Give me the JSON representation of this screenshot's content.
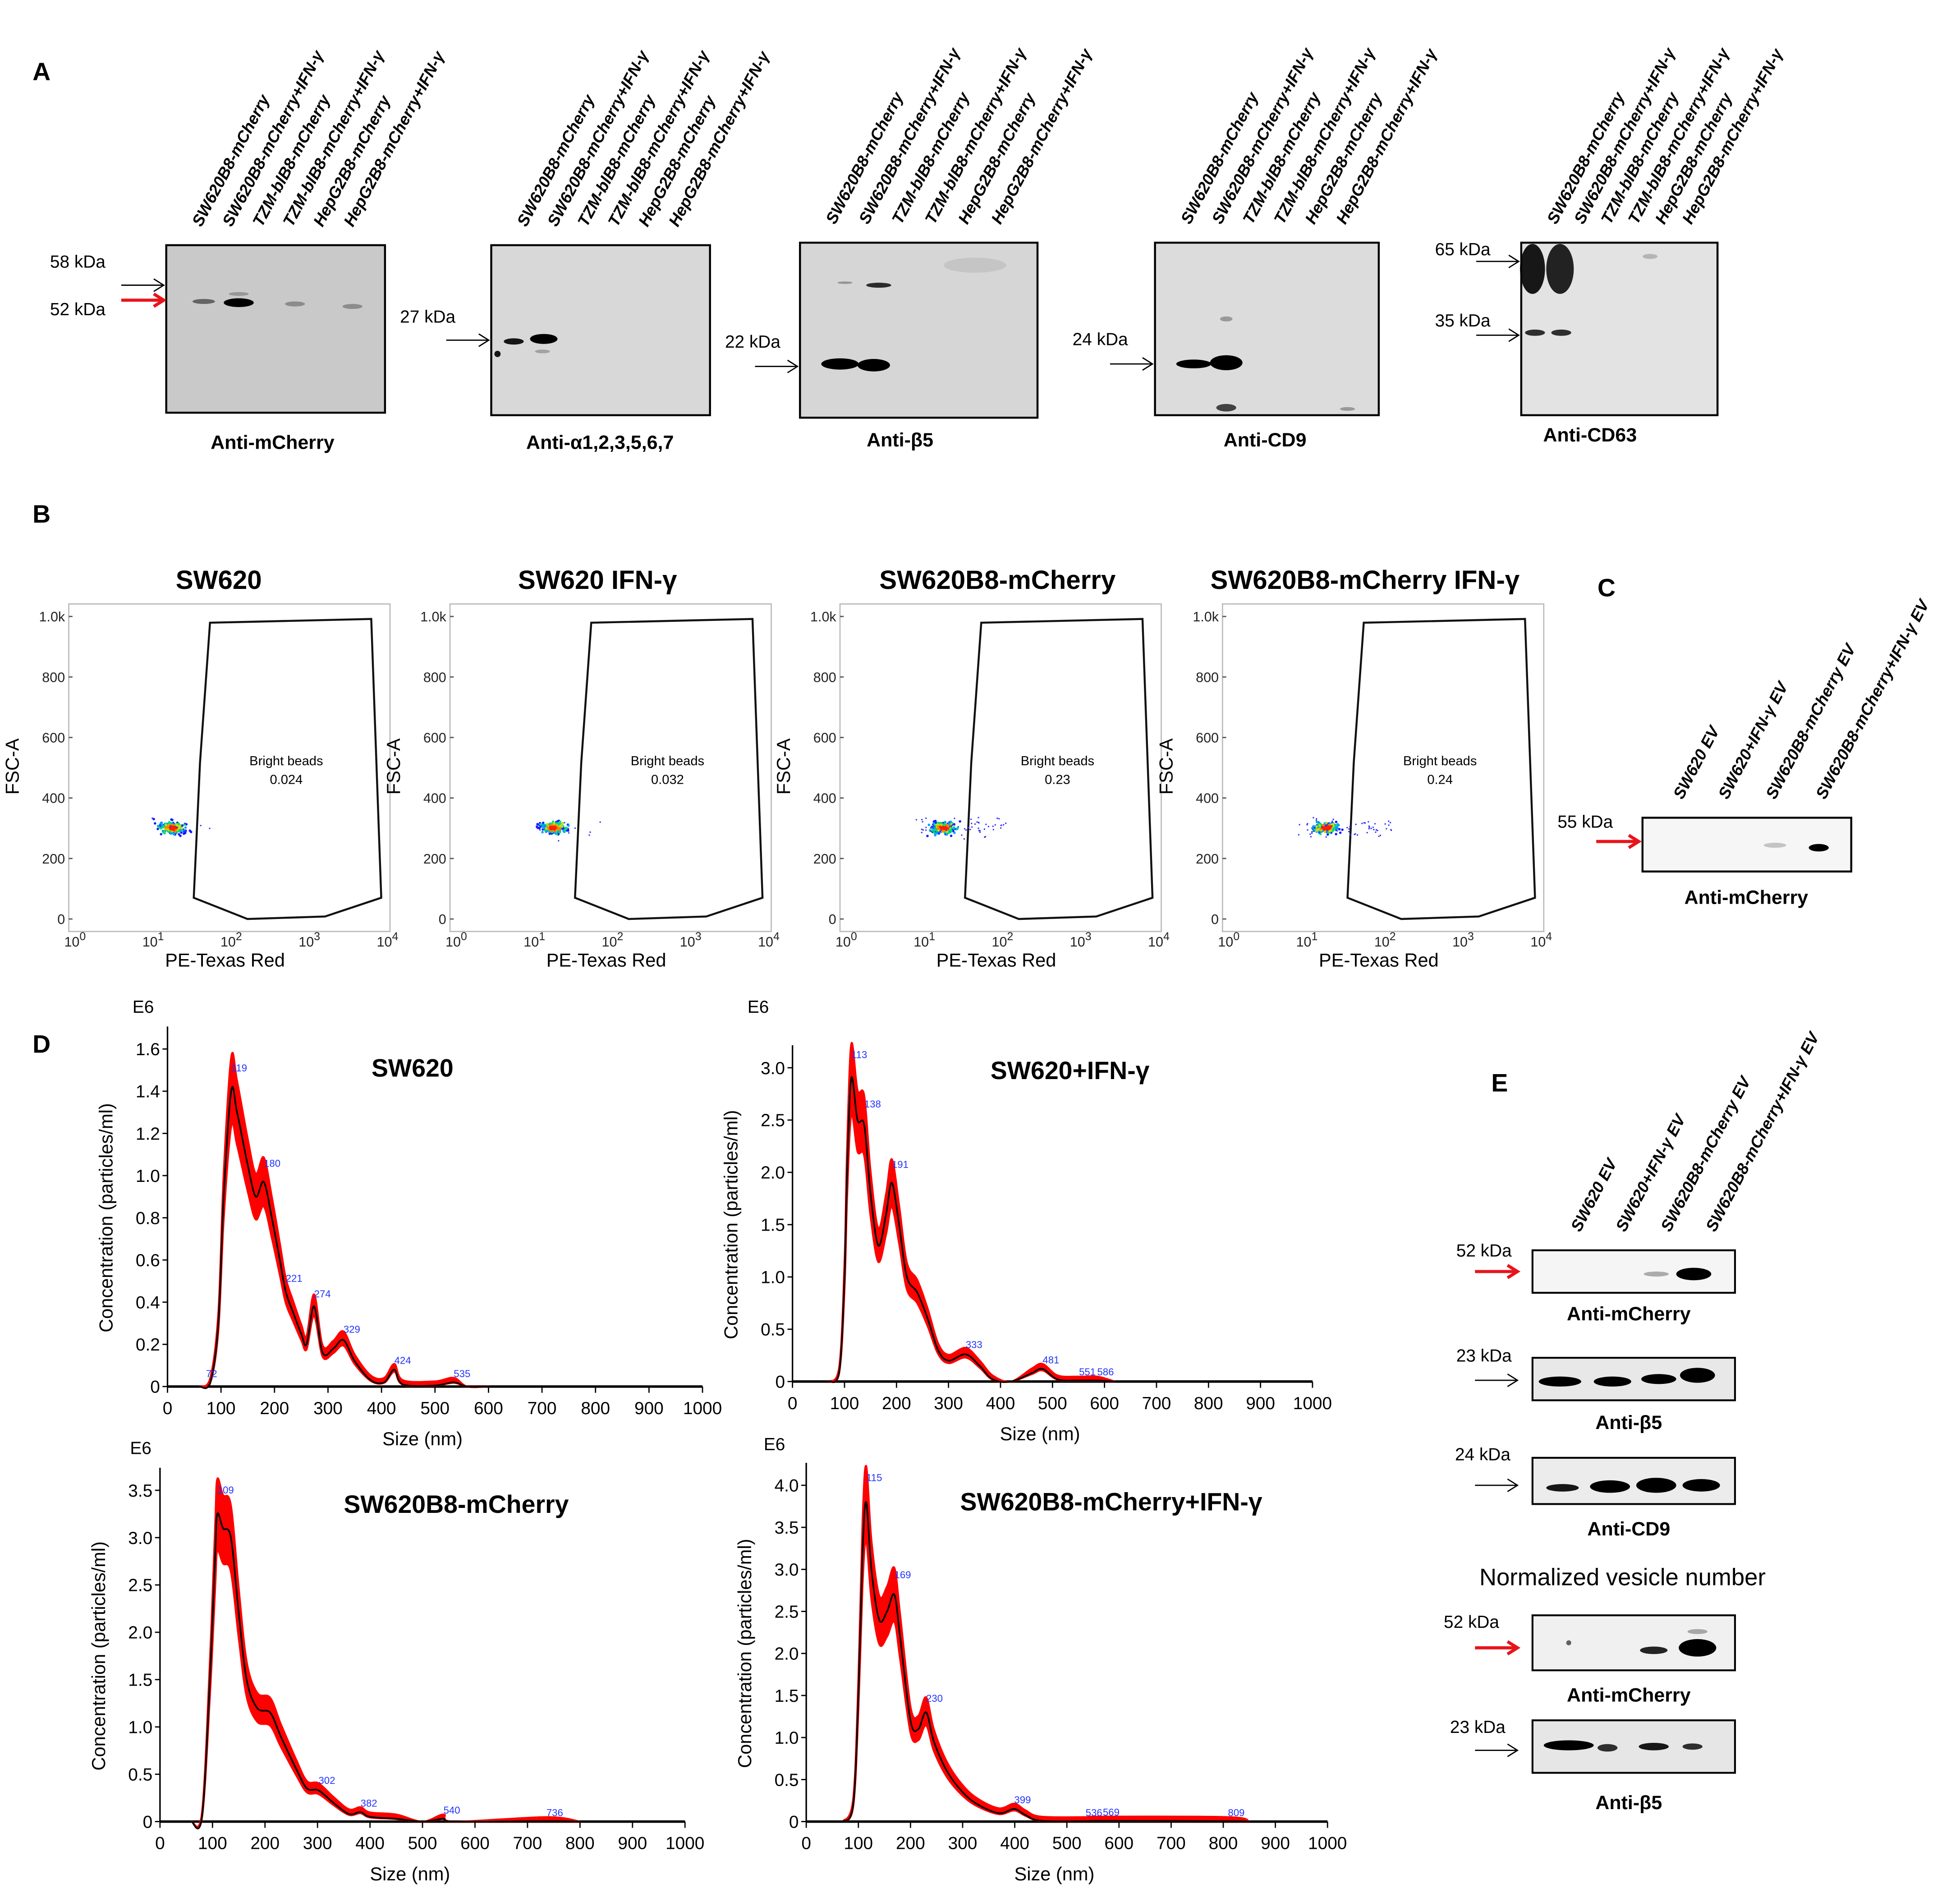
{
  "colors": {
    "red_arrow": "#e8141b",
    "nta_band": "#ff0000",
    "nta_line": "#000000",
    "peak_label": "#2233ff",
    "blot_bg": "#cfcfcf"
  },
  "panel_a": {
    "letter": "A",
    "lanes": [
      "SW620B8-mCherry",
      "SW620B8-mCherry+IFN-γ",
      "TZM-blB8-mCherry",
      "TZM-blB8-mCherry+IFN-γ",
      "HepG2B8-mCherry",
      "HepG2B8-mCherry+IFN-γ"
    ],
    "blots": [
      {
        "antibody": "Anti-mCherry",
        "markers": [
          {
            "label": "58 kDa",
            "arrow": "black"
          },
          {
            "label": "52 kDa",
            "arrow": "red"
          }
        ]
      },
      {
        "antibody": "Anti-α1,2,3,5,6,7",
        "markers": [
          {
            "label": "27 kDa",
            "arrow": "black"
          }
        ]
      },
      {
        "antibody": "Anti-β5",
        "markers": [
          {
            "label": "22 kDa",
            "arrow": "black"
          }
        ]
      },
      {
        "antibody": "Anti-CD9",
        "markers": [
          {
            "label": "24 kDa",
            "arrow": "black"
          }
        ]
      },
      {
        "antibody": "Anti-CD63",
        "markers": [
          {
            "label": "65 kDa",
            "arrow": "black"
          },
          {
            "label": "35 kDa",
            "arrow": "black"
          }
        ]
      }
    ]
  },
  "panel_b": {
    "letter": "B",
    "x_label": "PE-Texas Red",
    "y_label": "FSC-A",
    "y_ticks": [
      "0",
      "200",
      "400",
      "600",
      "800",
      "1.0k"
    ],
    "x_ticks": [
      "0",
      "1",
      "2",
      "3",
      "4"
    ],
    "x_tick_base": "10",
    "gate_name": "Bright beads",
    "plots": [
      {
        "title": "SW620",
        "gate_value": "0.024"
      },
      {
        "title": "SW620 IFN-γ",
        "gate_value": "0.032"
      },
      {
        "title": "SW620B8-mCherry",
        "gate_value": "0.23"
      },
      {
        "title": "SW620B8-mCherry IFN-γ",
        "gate_value": "0.24"
      }
    ]
  },
  "panel_c": {
    "letter": "C",
    "lanes": [
      "SW620 EV",
      "SW620+IFN-γ EV",
      "SW620B8-mCherry EV",
      "SW620B8-mCherry+IFN-γ EV"
    ],
    "blot": {
      "antibody": "Anti-mCherry",
      "marker": "55 kDa",
      "arrow": "red"
    }
  },
  "panel_d": {
    "letter": "D"
  },
  "chart_data": [
    {
      "type": "area",
      "title": "SW620",
      "xlabel": "Size (nm)",
      "ylabel": "Concentration (particles/ml)",
      "y_multiplier": "E6",
      "xlim": [
        0,
        1000
      ],
      "ylim": [
        0,
        1.6
      ],
      "x_ticks": [
        0,
        100,
        200,
        300,
        400,
        500,
        600,
        700,
        800,
        900,
        1000
      ],
      "y_ticks": [
        0,
        0.2,
        0.4,
        0.6,
        0.8,
        1.0,
        1.2,
        1.4,
        1.6
      ],
      "y_decimals": 1,
      "series": {
        "x": [
          60,
          80,
          95,
          105,
          119,
          130,
          150,
          165,
          180,
          195,
          210,
          221,
          235,
          250,
          260,
          274,
          290,
          310,
          329,
          350,
          380,
          405,
          424,
          440,
          500,
          535,
          560,
          600
        ],
        "y": [
          0,
          0.02,
          0.3,
          0.9,
          1.4,
          1.3,
          1.05,
          0.9,
          0.97,
          0.8,
          0.6,
          0.45,
          0.35,
          0.25,
          0.2,
          0.38,
          0.16,
          0.18,
          0.22,
          0.12,
          0.03,
          0.02,
          0.08,
          0.01,
          0.005,
          0.02,
          0,
          0
        ]
      },
      "peak_labels": [
        "72",
        "119",
        "180",
        "221",
        "274",
        "329",
        "424",
        "535"
      ]
    },
    {
      "type": "area",
      "title": "SW620+IFN-γ",
      "xlabel": "Size (nm)",
      "ylabel": "Concentration (particles/ml)",
      "y_multiplier": "E6",
      "xlim": [
        0,
        1000
      ],
      "ylim": [
        0,
        3.0
      ],
      "x_ticks": [
        0,
        100,
        200,
        300,
        400,
        500,
        600,
        700,
        800,
        900,
        1000
      ],
      "y_ticks": [
        0,
        0.5,
        1.0,
        1.5,
        2.0,
        2.5,
        3.0
      ],
      "y_decimals": 1,
      "series": {
        "x": [
          70,
          90,
          100,
          105,
          113,
          125,
          138,
          150,
          165,
          180,
          191,
          205,
          220,
          240,
          260,
          280,
          300,
          333,
          360,
          385,
          420,
          460,
          481,
          510,
          551,
          586,
          620
        ],
        "y": [
          0,
          0.1,
          1.0,
          2.0,
          2.9,
          2.5,
          2.45,
          1.8,
          1.3,
          1.6,
          1.9,
          1.5,
          1.0,
          0.85,
          0.6,
          0.3,
          0.2,
          0.26,
          0.15,
          0.02,
          0,
          0.08,
          0.12,
          0.02,
          0.01,
          0.01,
          0
        ]
      },
      "peak_labels": [
        "113",
        "138",
        "191",
        "333",
        "481",
        "551",
        "586"
      ]
    },
    {
      "type": "area",
      "title": "SW620B8-mCherry",
      "xlabel": "Size (nm)",
      "ylabel": "Concentration (particles/ml)",
      "y_multiplier": "E6",
      "xlim": [
        0,
        1000
      ],
      "ylim": [
        0,
        3.5
      ],
      "x_ticks": [
        0,
        100,
        200,
        300,
        400,
        500,
        600,
        700,
        800,
        900,
        1000
      ],
      "y_ticks": [
        0,
        0.5,
        1.0,
        1.5,
        2.0,
        2.5,
        3.0,
        3.5
      ],
      "y_decimals": 1,
      "series": {
        "x": [
          60,
          80,
          95,
          105,
          109,
          120,
          135,
          150,
          165,
          185,
          210,
          230,
          260,
          280,
          302,
          330,
          360,
          382,
          400,
          450,
          500,
          540,
          560,
          736,
          800
        ],
        "y": [
          0,
          0.05,
          1.5,
          2.8,
          3.25,
          3.1,
          3.0,
          2.2,
          1.5,
          1.2,
          1.15,
          0.9,
          0.55,
          0.35,
          0.33,
          0.2,
          0.08,
          0.1,
          0.05,
          0.03,
          0,
          0.03,
          0,
          0.005,
          0
        ]
      },
      "peak_labels": [
        "109",
        "302",
        "382",
        "540",
        "736"
      ]
    },
    {
      "type": "area",
      "title": "SW620B8-mCherry+IFN-γ",
      "xlabel": "Size (nm)",
      "ylabel": "Concentration (particles/ml)",
      "y_multiplier": "E6",
      "xlim": [
        0,
        1000
      ],
      "ylim": [
        0,
        4.0
      ],
      "x_ticks": [
        0,
        100,
        200,
        300,
        400,
        500,
        600,
        700,
        800,
        900,
        1000
      ],
      "y_ticks": [
        0,
        0.5,
        1.0,
        1.5,
        2.0,
        2.5,
        3.0,
        3.5,
        4.0
      ],
      "y_decimals": 1,
      "series": {
        "x": [
          70,
          90,
          100,
          108,
          115,
          125,
          140,
          155,
          169,
          180,
          200,
          215,
          230,
          245,
          270,
          300,
          330,
          370,
          399,
          420,
          450,
          536,
          569,
          809,
          850
        ],
        "y": [
          0,
          0.2,
          1.5,
          3.2,
          3.8,
          3.0,
          2.4,
          2.5,
          2.7,
          2.2,
          1.2,
          1.1,
          1.3,
          0.95,
          0.6,
          0.35,
          0.2,
          0.1,
          0.15,
          0.08,
          0.01,
          0.005,
          0.01,
          0.005,
          0
        ]
      },
      "peak_labels": [
        "115",
        "169",
        "230",
        "399",
        "536",
        "569",
        "809"
      ]
    }
  ],
  "panel_e": {
    "letter": "E",
    "lanes": [
      "SW620 EV",
      "SW620+IFN-γ EV",
      "SW620B8-mCherry EV",
      "SW620B8-mCherry+IFN-γ EV"
    ],
    "section_heading": "Normalized vesicle number",
    "blots": [
      {
        "antibody": "Anti-mCherry",
        "marker": "52 kDa",
        "arrow": "red"
      },
      {
        "antibody": "Anti-β5",
        "marker": "23 kDa",
        "arrow": "black"
      },
      {
        "antibody": "Anti-CD9",
        "marker": "24 kDa",
        "arrow": "black"
      },
      {
        "antibody": "Anti-mCherry",
        "marker": "52 kDa",
        "arrow": "red"
      },
      {
        "antibody": "Anti-β5",
        "marker": "23 kDa",
        "arrow": "black"
      }
    ]
  }
}
